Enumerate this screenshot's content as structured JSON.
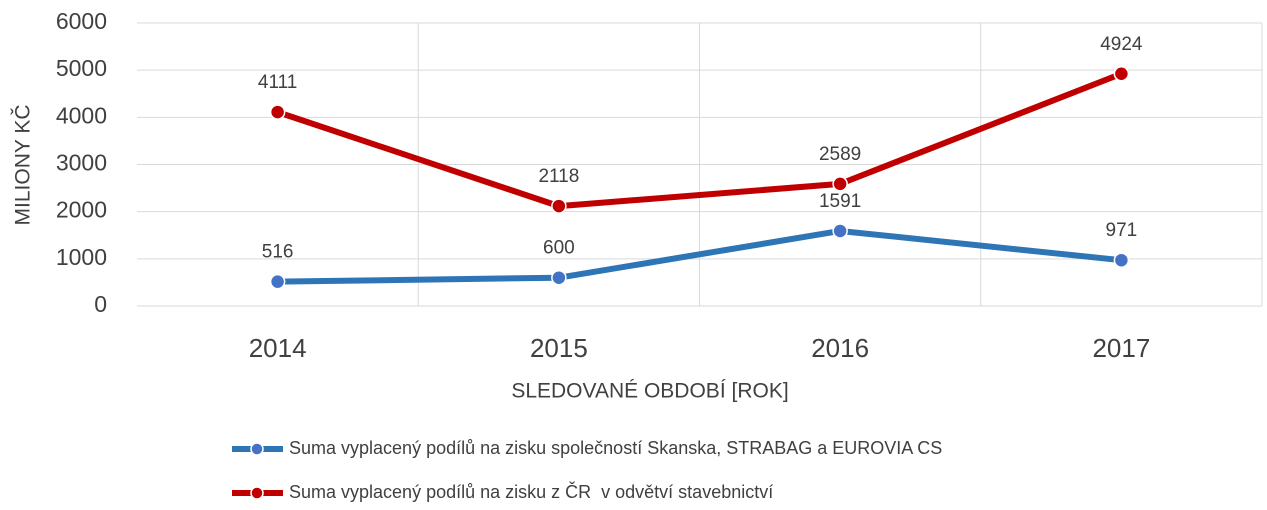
{
  "chart_data": {
    "type": "line",
    "x_label": "SLEDOVANÉ OBDOBÍ [ROK]",
    "y_label": "MILIONY KČ",
    "categories": [
      "2014",
      "2015",
      "2016",
      "2017"
    ],
    "series": [
      {
        "name": "Suma vyplacený podílů na zisku společností Skanska, STRABAG a EUROVIA CS",
        "color": "#2e75b6",
        "marker_color": "#4472c4",
        "values": [
          516,
          600,
          1591,
          971
        ]
      },
      {
        "name": "Suma vyplacený podílů na zisku z ČR  v odvětví stavebnictví",
        "color": "#c00000",
        "marker_color": "#c00000",
        "values": [
          4111,
          2118,
          2589,
          4924
        ]
      }
    ],
    "ylim": [
      0,
      6000
    ],
    "yticks": [
      0,
      1000,
      2000,
      3000,
      4000,
      5000,
      6000
    ],
    "grid": true,
    "legend": "bottom"
  }
}
